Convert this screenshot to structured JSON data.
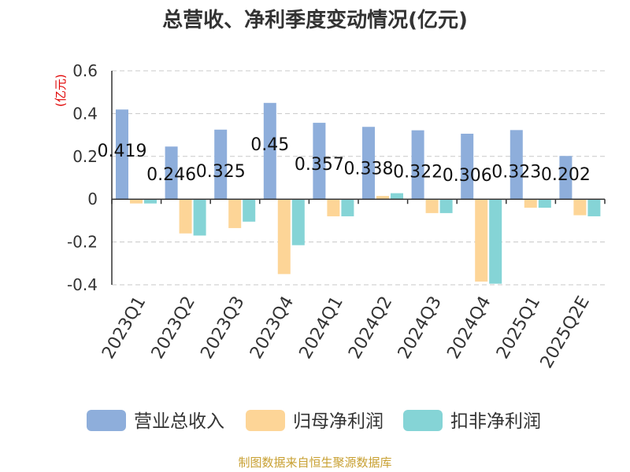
{
  "chart_data": {
    "type": "bar",
    "title": "总营收、净利季度变动情况(亿元)",
    "unit_label": "(亿元)",
    "categories": [
      "2023Q1",
      "2023Q2",
      "2023Q3",
      "2023Q4",
      "2024Q1",
      "2024Q2",
      "2024Q3",
      "2024Q4",
      "2025Q1",
      "2025Q2E"
    ],
    "series": [
      {
        "name": "营业总收入",
        "color": "#8eaedb",
        "values": [
          0.419,
          0.246,
          0.325,
          0.45,
          0.357,
          0.338,
          0.322,
          0.306,
          0.323,
          0.202
        ]
      },
      {
        "name": "归母净利润",
        "color": "#fdd597",
        "values": [
          -0.02,
          -0.16,
          -0.135,
          -0.35,
          -0.08,
          0.015,
          -0.065,
          -0.385,
          -0.04,
          -0.075
        ]
      },
      {
        "name": "扣非净利润",
        "color": "#85d4d6",
        "values": [
          -0.02,
          -0.17,
          -0.105,
          -0.215,
          -0.08,
          0.028,
          -0.065,
          -0.395,
          -0.04,
          -0.08
        ]
      }
    ],
    "data_labels": [
      "0.419",
      "0.246",
      "0.325",
      "0.45",
      "0.357",
      "0.338",
      "0.322",
      "0.306",
      "0.323",
      "0.202"
    ],
    "yticks": [
      "0.6",
      "0.4",
      "0.2",
      "0",
      "-0.2",
      "-0.4"
    ],
    "ytick_values": [
      0.6,
      0.4,
      0.2,
      0,
      -0.2,
      -0.4
    ],
    "ylim": [
      -0.4,
      0.6
    ],
    "grid": "horizontal dashed",
    "legend_position": "bottom"
  },
  "footer": {
    "source": "制图数据来自恒生聚源数据库"
  }
}
